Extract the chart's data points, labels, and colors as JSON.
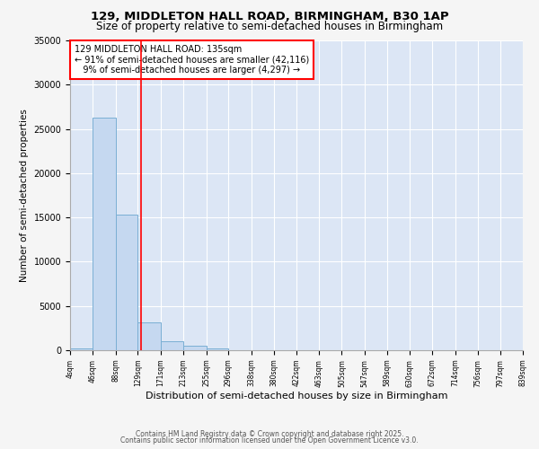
{
  "title1": "129, MIDDLETON HALL ROAD, BIRMINGHAM, B30 1AP",
  "title2": "Size of property relative to semi-detached houses in Birmingham",
  "xlabel": "Distribution of semi-detached houses by size in Birmingham",
  "ylabel": "Number of semi-detached properties",
  "annotation_title": "129 MIDDLETON HALL ROAD: 135sqm",
  "annotation_line1": "← 91% of semi-detached houses are smaller (42,116)",
  "annotation_line2": "9% of semi-detached houses are larger (4,297) →",
  "bin_edges": [
    4,
    46,
    88,
    129,
    171,
    213,
    255,
    296,
    338,
    380,
    422,
    463,
    505,
    547,
    589,
    630,
    672,
    714,
    756,
    797,
    839
  ],
  "bar_values": [
    200,
    26300,
    15300,
    3100,
    1000,
    500,
    200,
    50,
    0,
    0,
    0,
    0,
    0,
    0,
    0,
    0,
    0,
    0,
    0,
    0
  ],
  "bar_color": "#c5d8f0",
  "bar_edge_color": "#7aafd4",
  "red_line_x": 135,
  "ylim": [
    0,
    35000
  ],
  "yticks": [
    0,
    5000,
    10000,
    15000,
    20000,
    25000,
    30000,
    35000
  ],
  "bg_color": "#dce6f5",
  "fig_bg_color": "#f5f5f5",
  "footer1": "Contains HM Land Registry data © Crown copyright and database right 2025.",
  "footer2": "Contains public sector information licensed under the Open Government Licence v3.0."
}
